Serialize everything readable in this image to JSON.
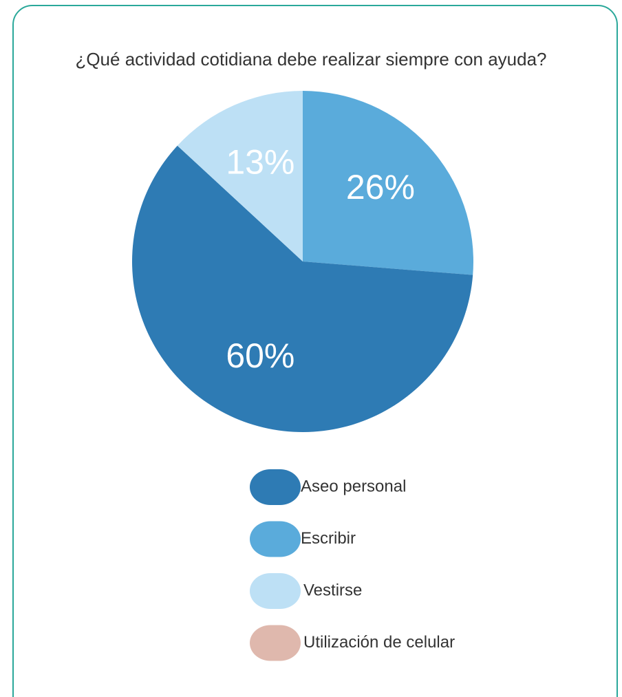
{
  "chart_data": {
    "type": "pie",
    "title": "¿Qué actividad cotidiana debe realizar siempre con ayuda?",
    "categories": [
      "Aseo personal",
      "Escribir",
      "Vestirse",
      "Utilización de celular"
    ],
    "values": [
      60,
      26,
      13,
      0
    ],
    "value_labels": [
      "60%",
      "26%",
      "13%",
      null
    ],
    "colors": [
      "#2e7bb4",
      "#5aabdb",
      "#bde0f5",
      "#dfb8ad"
    ]
  }
}
